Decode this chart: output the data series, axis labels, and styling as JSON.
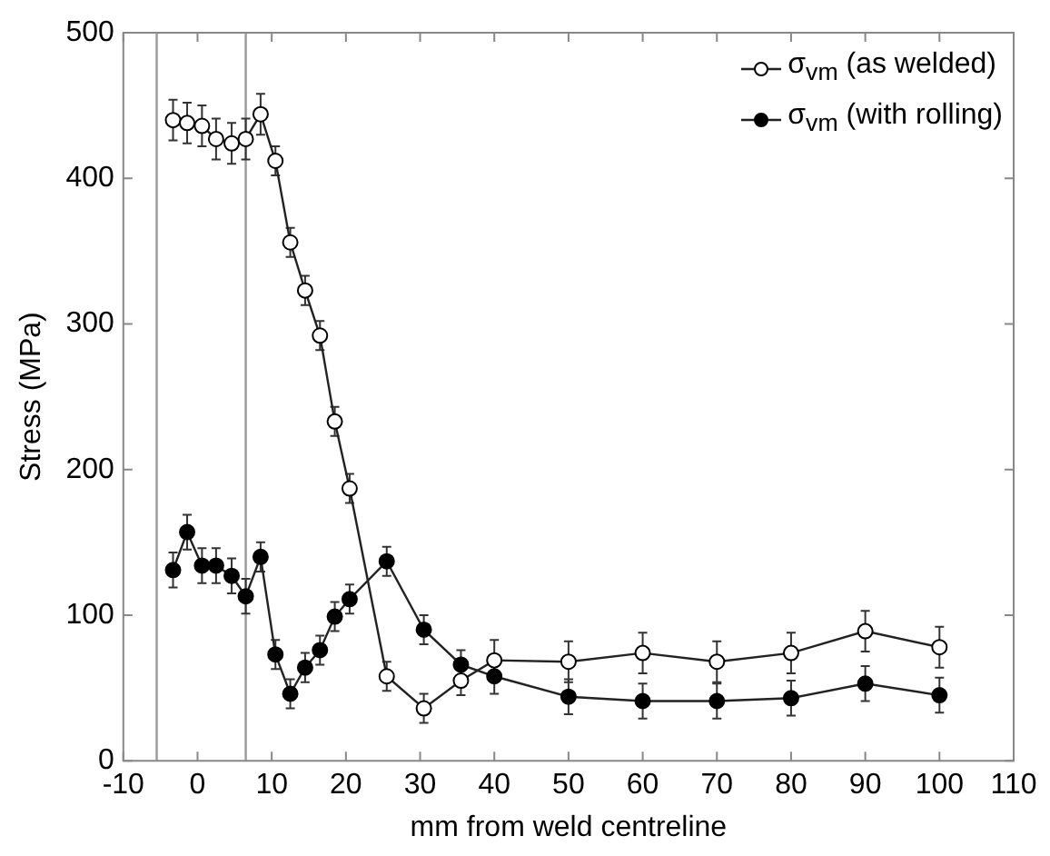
{
  "chart_data": {
    "type": "line",
    "xlabel": "mm from weld centreline",
    "ylabel": "Stress (MPa)",
    "xlim": [
      -10,
      110
    ],
    "xticks": [
      -10,
      0,
      10,
      20,
      30,
      40,
      50,
      60,
      70,
      80,
      90,
      100,
      110
    ],
    "ylim": [
      0,
      500
    ],
    "yticks": [
      0,
      100,
      200,
      300,
      400,
      500
    ],
    "grid": false,
    "legend": "top right",
    "marker": "circle",
    "line_style": "solid",
    "ref_lines": [
      {
        "axis": "x",
        "value": -5.5,
        "color": "#999999"
      },
      {
        "axis": "x",
        "value": 6.5,
        "color": "#999999"
      }
    ],
    "series": [
      {
        "name": "σ$_{vm}$ (as welded)",
        "color": "#ffffff",
        "x": [
          -3.3,
          -1.4,
          0.6,
          2.5,
          4.6,
          6.5,
          8.5,
          10.5,
          12.5,
          14.5,
          16.5,
          18.5,
          20.5,
          25.5,
          30.5,
          35.5,
          40,
          50,
          60,
          70,
          80,
          90,
          100
        ],
        "values": [
          440,
          438,
          436,
          427,
          424,
          427,
          444,
          412,
          356,
          323,
          292,
          233,
          187,
          58,
          36,
          55,
          69,
          68,
          74,
          68,
          74,
          89,
          78
        ],
        "errors": [
          14,
          14,
          14,
          14,
          14,
          14,
          14,
          10,
          10,
          10,
          10,
          10,
          10,
          10,
          10,
          10,
          14,
          14,
          14,
          14,
          14,
          14,
          14
        ]
      },
      {
        "name": "σ$_{vm}$ (with rolling)",
        "color": "#000000",
        "x": [
          -3.3,
          -1.4,
          0.6,
          2.5,
          4.6,
          6.5,
          8.5,
          10.5,
          12.5,
          14.5,
          16.5,
          18.5,
          20.5,
          25.5,
          30.5,
          35.5,
          40,
          50,
          60,
          70,
          80,
          90,
          100
        ],
        "values": [
          131,
          157,
          134,
          134,
          127,
          113,
          140,
          73,
          46,
          64,
          76,
          99,
          111,
          137,
          90,
          66,
          58,
          44,
          41,
          41,
          43,
          53,
          45
        ],
        "errors": [
          12,
          12,
          12,
          12,
          12,
          12,
          10,
          10,
          10,
          10,
          10,
          10,
          10,
          10,
          10,
          10,
          12,
          12,
          12,
          12,
          12,
          12,
          12
        ]
      }
    ]
  }
}
